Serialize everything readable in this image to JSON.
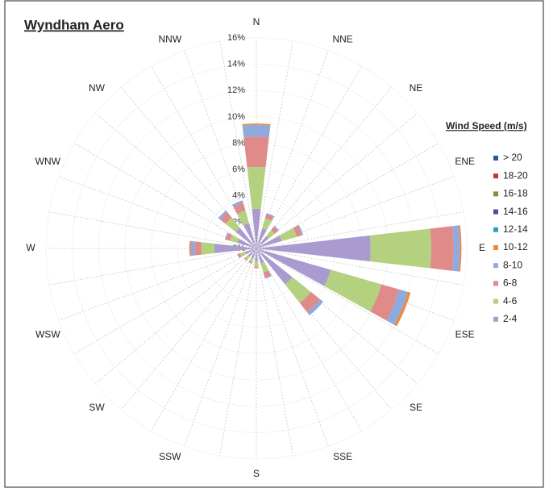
{
  "chart_data": {
    "type": "windrose",
    "title": "Wyndham Aero",
    "legend_title": "Wind Speed (m/s)",
    "legend": "right",
    "categories": [
      "N",
      "NNE",
      "NE",
      "ENE",
      "E",
      "ESE",
      "SE",
      "SSE",
      "S",
      "SSW",
      "SW",
      "WSW",
      "W",
      "WNW",
      "NW",
      "NNW"
    ],
    "ylim": [
      0,
      16
    ],
    "yticks": [
      {
        "value": 0,
        "label": "0%"
      },
      {
        "value": 2,
        "label": "2%"
      },
      {
        "value": 4,
        "label": "4%"
      },
      {
        "value": 6,
        "label": "6%"
      },
      {
        "value": 8,
        "label": "8%"
      },
      {
        "value": 10,
        "label": "10%"
      },
      {
        "value": 12,
        "label": "12%"
      },
      {
        "value": 14,
        "label": "14%"
      },
      {
        "value": 16,
        "label": "16%"
      }
    ],
    "series": [
      {
        "name": "2-4",
        "color": "#a99bcf",
        "values": [
          3,
          1.6,
          1.2,
          2.0,
          8.7,
          5.9,
          3.5,
          1.2,
          1.0,
          0.8,
          0.8,
          0.9,
          3.2,
          1.5,
          2.0,
          2.0
        ]
      },
      {
        "name": "4-6",
        "color": "#b3d17f",
        "values": [
          3.2,
          0.8,
          0.6,
          1.2,
          4.6,
          4.0,
          1.8,
          0.7,
          0.4,
          0.3,
          0.3,
          0.4,
          1.0,
          0.6,
          1.0,
          1.0
        ]
      },
      {
        "name": "6-8",
        "color": "#e08a8a",
        "values": [
          2.3,
          0.3,
          0.3,
          0.4,
          1.7,
          1.4,
          0.9,
          0.4,
          0.1,
          0.1,
          0.1,
          0.2,
          0.5,
          0.3,
          0.5,
          0.6
        ]
      },
      {
        "name": "8-10",
        "color": "#8faadc",
        "values": [
          0.9,
          0.1,
          0.1,
          0.1,
          0.5,
          0.7,
          0.3,
          0.1,
          0,
          0,
          0,
          0,
          0.3,
          0.1,
          0.2,
          0.2
        ]
      },
      {
        "name": "10-12",
        "color": "#f0883a",
        "values": [
          0.1,
          0,
          0,
          0,
          0.1,
          0.2,
          0,
          0,
          0,
          0,
          0,
          0,
          0.1,
          0,
          0,
          0
        ]
      },
      {
        "name": "12-14",
        "color": "#31a0c0",
        "values": [
          0,
          0,
          0,
          0,
          0,
          0,
          0,
          0,
          0,
          0,
          0,
          0,
          0,
          0,
          0,
          0
        ]
      },
      {
        "name": "14-16",
        "color": "#5e4a8b",
        "values": [
          0,
          0,
          0,
          0,
          0,
          0,
          0,
          0,
          0,
          0,
          0,
          0,
          0,
          0,
          0,
          0
        ]
      },
      {
        "name": "16-18",
        "color": "#77933c",
        "values": [
          0,
          0,
          0,
          0,
          0,
          0,
          0,
          0,
          0,
          0,
          0,
          0,
          0,
          0,
          0,
          0
        ]
      },
      {
        "name": "18-20",
        "color": "#c0392b",
        "values": [
          0,
          0,
          0,
          0,
          0,
          0,
          0,
          0,
          0,
          0,
          0,
          0,
          0,
          0,
          0,
          0
        ]
      },
      {
        "name": "> 20",
        "color": "#2e5a87",
        "values": [
          0,
          0,
          0,
          0,
          0,
          0,
          0,
          0,
          0,
          0,
          0,
          0,
          0,
          0,
          0,
          0
        ]
      }
    ]
  }
}
